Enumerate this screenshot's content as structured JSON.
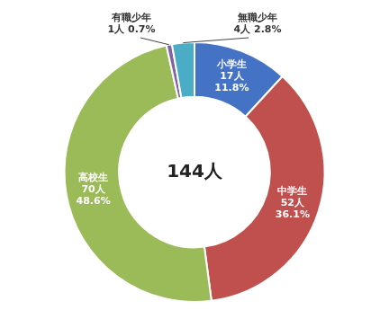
{
  "chart_data": {
    "type": "doughnut",
    "categories": [
      "小学生",
      "中学生",
      "高校生",
      "有職少年",
      "無職少年"
    ],
    "values": [
      17,
      52,
      70,
      1,
      4
    ],
    "value_labels": [
      "17人\n11.8%",
      "52人\n36.1%",
      "70人\n48.6%",
      "1人 0.7%",
      "4人 2.8%"
    ],
    "colors": [
      "#4472C4",
      "#C0504D",
      "#9BBB59",
      "#8064A2",
      "#4BACC6"
    ],
    "data_labels": true,
    "annotations": [
      "144人"
    ]
  }
}
